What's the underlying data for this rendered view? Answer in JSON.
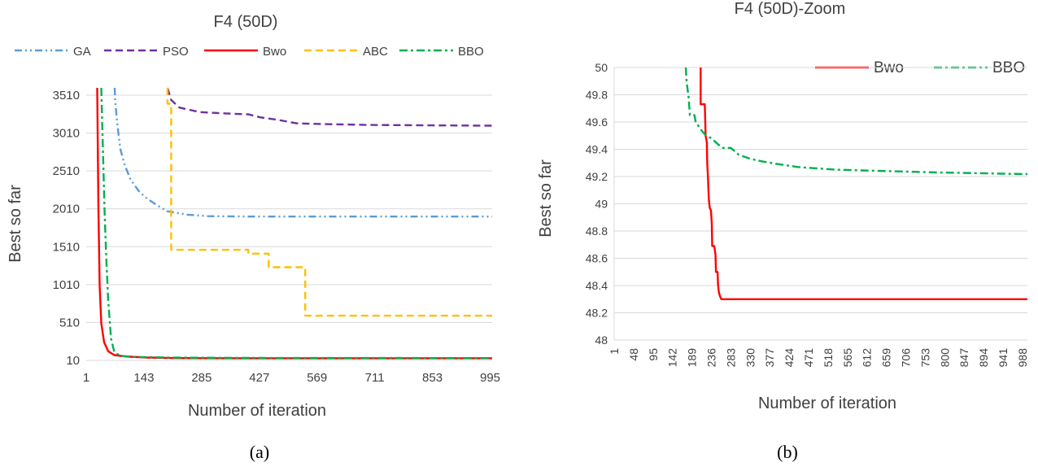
{
  "colors": {
    "GA": "#5b9bd5",
    "PSO": "#7030a0",
    "Bwo": "#ff0000",
    "ABC": "#ffc000",
    "BBO": "#00b050"
  },
  "captions": [
    "(a)",
    "(b)"
  ],
  "chart_data": [
    {
      "type": "line",
      "title": "F4 (50D)",
      "xlabel": "Number of iteration",
      "ylabel": "Best so far",
      "xlim": [
        1,
        1000
      ],
      "ylim": [
        10,
        3610
      ],
      "x_ticks": [
        "1",
        "143",
        "285",
        "427",
        "569",
        "711",
        "853",
        "995"
      ],
      "y_ticks": [
        "10",
        "510",
        "1010",
        "1510",
        "2010",
        "2510",
        "3010",
        "3510"
      ],
      "grid": true,
      "legend_position": "top",
      "series": [
        {
          "name": "GA",
          "dash": "dash-dot-dot",
          "points": [
            [
              71,
              3610
            ],
            [
              72,
              3450
            ],
            [
              78,
              3100
            ],
            [
              85,
              2800
            ],
            [
              95,
              2600
            ],
            [
              110,
              2400
            ],
            [
              130,
              2250
            ],
            [
              150,
              2150
            ],
            [
              175,
              2060
            ],
            [
              200,
              1980
            ],
            [
              250,
              1935
            ],
            [
              300,
              1915
            ],
            [
              400,
              1910
            ],
            [
              600,
              1910
            ],
            [
              1000,
              1910
            ]
          ]
        },
        {
          "name": "PSO",
          "dash": "dash",
          "points": [
            [
              201,
              3610
            ],
            [
              210,
              3450
            ],
            [
              230,
              3350
            ],
            [
              280,
              3290
            ],
            [
              350,
              3270
            ],
            [
              400,
              3260
            ],
            [
              430,
              3220
            ],
            [
              470,
              3190
            ],
            [
              520,
              3140
            ],
            [
              600,
              3130
            ],
            [
              700,
              3120
            ],
            [
              850,
              3115
            ],
            [
              1000,
              3110
            ]
          ]
        },
        {
          "name": "Bwo",
          "dash": "solid",
          "points": [
            [
              28,
              3610
            ],
            [
              31,
              2000
            ],
            [
              34,
              1000
            ],
            [
              38,
              500
            ],
            [
              45,
              250
            ],
            [
              55,
              130
            ],
            [
              70,
              80
            ],
            [
              100,
              60
            ],
            [
              150,
              48
            ],
            [
              220,
              40
            ],
            [
              400,
              38
            ],
            [
              1000,
              38
            ]
          ]
        },
        {
          "name": "ABC",
          "dash": "dash",
          "points": [
            [
              201,
              3610
            ],
            [
              201,
              3400
            ],
            [
              210,
              3400
            ],
            [
              210,
              1470
            ],
            [
              400,
              1470
            ],
            [
              400,
              1420
            ],
            [
              450,
              1420
            ],
            [
              450,
              1240
            ],
            [
              540,
              1240
            ],
            [
              540,
              600
            ],
            [
              1000,
              600
            ]
          ]
        },
        {
          "name": "BBO",
          "dash": "dash-dot",
          "points": [
            [
              38,
              3610
            ],
            [
              42,
              2800
            ],
            [
              46,
              2000
            ],
            [
              50,
              1400
            ],
            [
              55,
              800
            ],
            [
              62,
              300
            ],
            [
              70,
              120
            ],
            [
              85,
              70
            ],
            [
              120,
              55
            ],
            [
              200,
              48
            ],
            [
              400,
              42
            ],
            [
              1000,
              40
            ]
          ]
        }
      ]
    },
    {
      "type": "line",
      "title": "F4 (50D)-Zoom",
      "xlabel": "Number of iteration",
      "ylabel": "Best so far",
      "xlim": [
        1,
        1000
      ],
      "ylim": [
        48,
        50
      ],
      "x_ticks": [
        "1",
        "48",
        "95",
        "142",
        "189",
        "236",
        "283",
        "330",
        "377",
        "424",
        "471",
        "518",
        "565",
        "612",
        "659",
        "706",
        "753",
        "800",
        "847",
        "894",
        "941",
        "988"
      ],
      "y_ticks": [
        "48",
        "48.2",
        "48.4",
        "48.6",
        "48.8",
        "49",
        "49.2",
        "49.4",
        "49.6",
        "49.8",
        "50"
      ],
      "grid": true,
      "legend_position": "top-right",
      "series": [
        {
          "name": "Bwo",
          "dash": "solid",
          "points": [
            [
              210,
              50
            ],
            [
              210,
              49.73
            ],
            [
              220,
              49.73
            ],
            [
              222,
              49.5
            ],
            [
              225,
              49.45
            ],
            [
              226,
              49.3
            ],
            [
              228,
              49.18
            ],
            [
              229,
              49.1
            ],
            [
              230,
              49.03
            ],
            [
              232,
              48.97
            ],
            [
              235,
              48.95
            ],
            [
              237,
              48.85
            ],
            [
              238,
              48.69
            ],
            [
              243,
              48.69
            ],
            [
              246,
              48.62
            ],
            [
              247,
              48.5
            ],
            [
              251,
              48.5
            ],
            [
              252,
              48.41
            ],
            [
              254,
              48.35
            ],
            [
              257,
              48.32
            ],
            [
              260,
              48.3
            ],
            [
              1000,
              48.3
            ]
          ]
        },
        {
          "name": "BBO",
          "dash": "dash-dot",
          "points": [
            [
              174,
              50
            ],
            [
              176,
              49.9
            ],
            [
              181,
              49.78
            ],
            [
              184,
              49.65
            ],
            [
              195,
              49.65
            ],
            [
              198,
              49.6
            ],
            [
              205,
              49.57
            ],
            [
              212,
              49.54
            ],
            [
              220,
              49.51
            ],
            [
              236,
              49.48
            ],
            [
              262,
              49.41
            ],
            [
              283,
              49.41
            ],
            [
              302,
              49.36
            ],
            [
              330,
              49.33
            ],
            [
              360,
              49.31
            ],
            [
              400,
              49.29
            ],
            [
              445,
              49.27
            ],
            [
              490,
              49.26
            ],
            [
              540,
              49.25
            ],
            [
              600,
              49.245
            ],
            [
              660,
              49.24
            ],
            [
              720,
              49.235
            ],
            [
              780,
              49.23
            ],
            [
              840,
              49.227
            ],
            [
              900,
              49.223
            ],
            [
              960,
              49.22
            ],
            [
              1000,
              49.218
            ]
          ]
        }
      ]
    }
  ]
}
